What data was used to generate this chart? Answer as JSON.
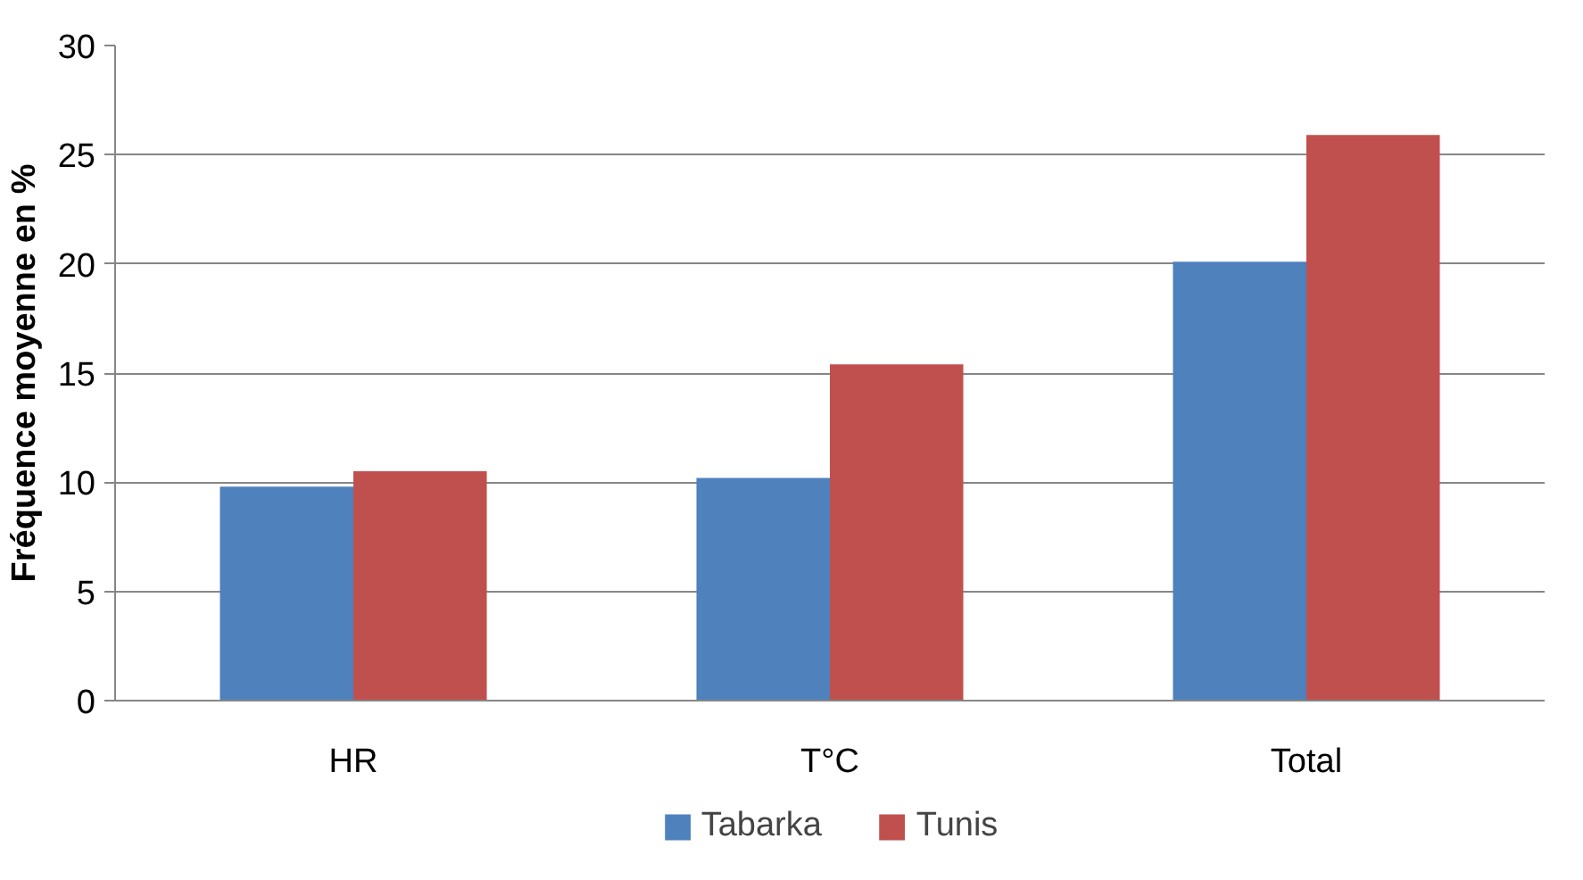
{
  "chart_data": {
    "type": "bar",
    "ylabel": "Fréquence moyenne en %",
    "categories": [
      "HR",
      "T°C",
      "Total"
    ],
    "series": [
      {
        "name": "Tabarka",
        "color": "#4f81bd",
        "values": [
          9.8,
          10.2,
          20.1
        ]
      },
      {
        "name": "Tunis",
        "color": "#c0504d",
        "values": [
          10.5,
          15.4,
          25.9
        ]
      }
    ],
    "ylim": [
      0,
      30
    ],
    "yticks": [
      0,
      5,
      10,
      15,
      20,
      25,
      30
    ],
    "grid": "y",
    "legend": "bottom"
  }
}
